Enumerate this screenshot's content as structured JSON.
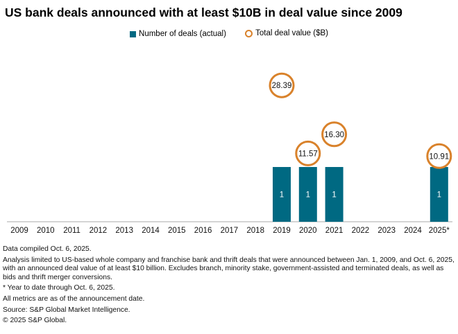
{
  "chart_data": {
    "type": "bar",
    "title": "US bank deals announced with at least $10B in deal value since 2009",
    "categories": [
      "2009",
      "2010",
      "2011",
      "2012",
      "2013",
      "2014",
      "2015",
      "2016",
      "2017",
      "2018",
      "2019",
      "2020",
      "2021",
      "2022",
      "2023",
      "2024",
      "2025*"
    ],
    "series": [
      {
        "name": "Number of deals (actual)",
        "type": "bar",
        "color": "#006982",
        "values": [
          0,
          0,
          0,
          0,
          0,
          0,
          0,
          0,
          0,
          0,
          1,
          1,
          1,
          0,
          0,
          0,
          1
        ]
      },
      {
        "name": "Total deal value ($B)",
        "type": "scatter",
        "color": "#d9822b",
        "values": [
          null,
          null,
          null,
          null,
          null,
          null,
          null,
          null,
          null,
          null,
          28.39,
          11.57,
          16.3,
          null,
          null,
          null,
          10.91
        ],
        "labels": [
          null,
          null,
          null,
          null,
          null,
          null,
          null,
          null,
          null,
          null,
          "28.39",
          "11.57",
          "16.30",
          null,
          null,
          null,
          "10.91"
        ]
      }
    ],
    "legend": "top-center",
    "grid": false
  },
  "notes": [
    "Data compiled Oct. 6, 2025.",
    "Analysis limited to US-based whole company and franchise bank and thrift deals that were announced between Jan. 1, 2009, and Oct. 6, 2025, with an announced deal value of at least $10 billion. Excludes branch, minority stake, government-assisted and terminated deals, as well as bids and thrift merger conversions.",
    "* Year to date through Oct. 6, 2025.",
    "All metrics are as of the announcement date.",
    "Source: S&P Global Market Intelligence.",
    "© 2025 S&P Global."
  ]
}
